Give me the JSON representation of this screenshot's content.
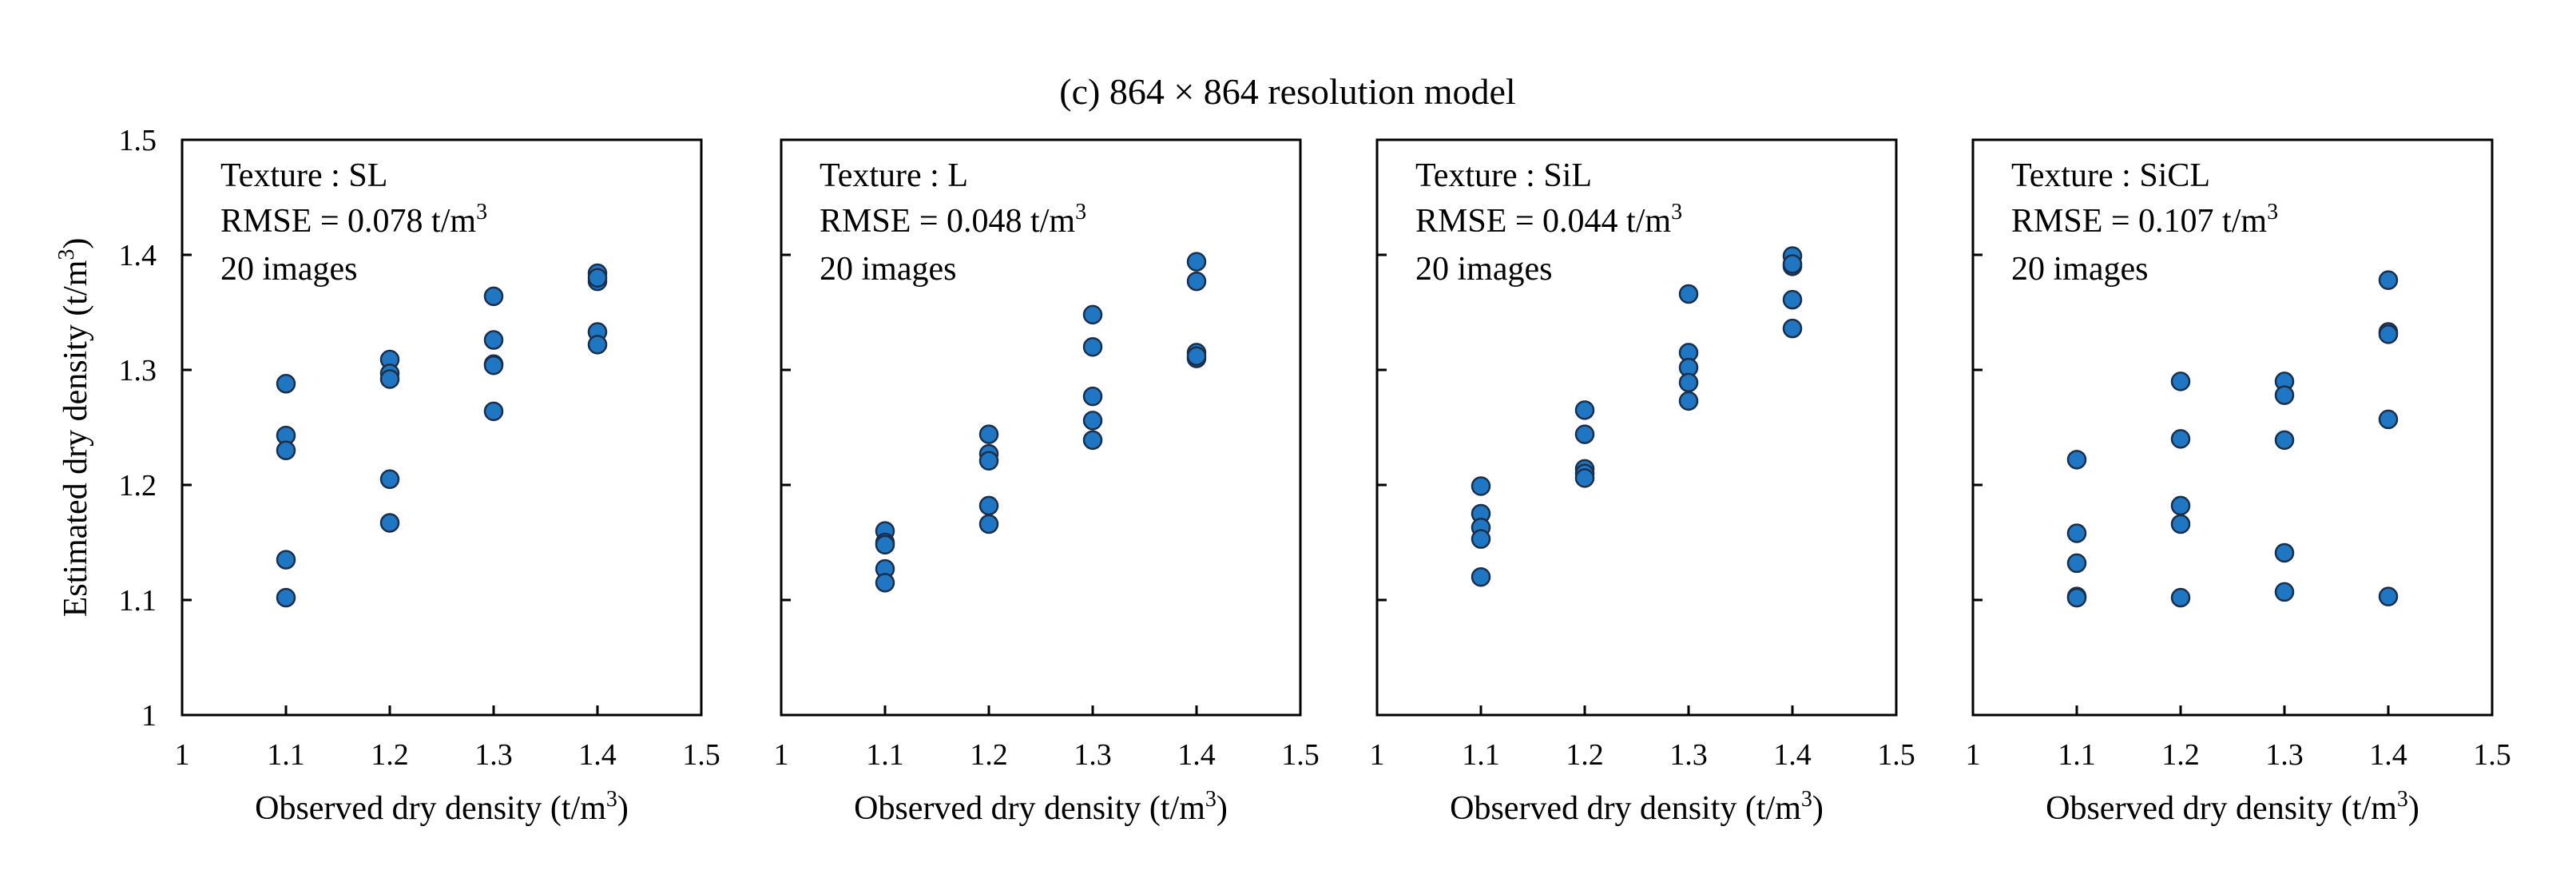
{
  "title": "(c) 864 × 864 resolution model",
  "chart_data": [
    {
      "type": "scatter",
      "texture_label": "Texture : SL",
      "rmse_label": "RMSE =  0.078 t/m",
      "rmse_sup": "3",
      "images_label": "20 images",
      "xlabel": "Observed dry density (t/m",
      "xlabel_sup": "3",
      "xlabel_end": ")",
      "ylabel": "Estimated dry density (t/m",
      "ylabel_sup": "3",
      "ylabel_end": ")",
      "xlim": [
        1,
        1.5
      ],
      "ylim": [
        1,
        1.5
      ],
      "x_ticks": [
        "1",
        "1.1",
        "1.2",
        "1.3",
        "1.4",
        "1.5"
      ],
      "y_ticks": [
        "1",
        "1.1",
        "1.2",
        "1.3",
        "1.4",
        "1.5"
      ],
      "points": [
        [
          1.1,
          1.288
        ],
        [
          1.1,
          1.243
        ],
        [
          1.1,
          1.23
        ],
        [
          1.1,
          1.135
        ],
        [
          1.1,
          1.102
        ],
        [
          1.2,
          1.309
        ],
        [
          1.2,
          1.297
        ],
        [
          1.2,
          1.292
        ],
        [
          1.2,
          1.205
        ],
        [
          1.2,
          1.167
        ],
        [
          1.3,
          1.364
        ],
        [
          1.3,
          1.326
        ],
        [
          1.3,
          1.305
        ],
        [
          1.3,
          1.304
        ],
        [
          1.3,
          1.264
        ],
        [
          1.4,
          1.384
        ],
        [
          1.4,
          1.377
        ],
        [
          1.4,
          1.333
        ],
        [
          1.4,
          1.322
        ],
        [
          1.4,
          1.38
        ]
      ]
    },
    {
      "type": "scatter",
      "texture_label": "Texture : L",
      "rmse_label": "RMSE =  0.048 t/m",
      "rmse_sup": "3",
      "images_label": "20 images",
      "xlabel": "Observed dry density (t/m",
      "xlabel_sup": "3",
      "xlabel_end": ")",
      "xlim": [
        1,
        1.5
      ],
      "ylim": [
        1,
        1.5
      ],
      "x_ticks": [
        "1",
        "1.1",
        "1.2",
        "1.3",
        "1.4",
        "1.5"
      ],
      "points": [
        [
          1.1,
          1.16
        ],
        [
          1.1,
          1.15
        ],
        [
          1.1,
          1.148
        ],
        [
          1.1,
          1.127
        ],
        [
          1.1,
          1.115
        ],
        [
          1.2,
          1.244
        ],
        [
          1.2,
          1.227
        ],
        [
          1.2,
          1.221
        ],
        [
          1.2,
          1.182
        ],
        [
          1.2,
          1.166
        ],
        [
          1.3,
          1.348
        ],
        [
          1.3,
          1.32
        ],
        [
          1.3,
          1.277
        ],
        [
          1.3,
          1.256
        ],
        [
          1.3,
          1.239
        ],
        [
          1.4,
          1.394
        ],
        [
          1.4,
          1.377
        ],
        [
          1.4,
          1.315
        ],
        [
          1.4,
          1.31
        ],
        [
          1.4,
          1.312
        ]
      ]
    },
    {
      "type": "scatter",
      "texture_label": "Texture : SiL",
      "rmse_label": "RMSE =  0.044 t/m",
      "rmse_sup": "3",
      "images_label": "20 images",
      "xlabel": "Observed dry density (t/m",
      "xlabel_sup": "3",
      "xlabel_end": ")",
      "xlim": [
        1,
        1.5
      ],
      "ylim": [
        1,
        1.5
      ],
      "x_ticks": [
        "1",
        "1.1",
        "1.2",
        "1.3",
        "1.4",
        "1.5"
      ],
      "points": [
        [
          1.1,
          1.199
        ],
        [
          1.1,
          1.175
        ],
        [
          1.1,
          1.163
        ],
        [
          1.1,
          1.153
        ],
        [
          1.1,
          1.12
        ],
        [
          1.2,
          1.265
        ],
        [
          1.2,
          1.244
        ],
        [
          1.2,
          1.214
        ],
        [
          1.2,
          1.21
        ],
        [
          1.2,
          1.206
        ],
        [
          1.3,
          1.366
        ],
        [
          1.3,
          1.315
        ],
        [
          1.3,
          1.302
        ],
        [
          1.3,
          1.289
        ],
        [
          1.3,
          1.273
        ],
        [
          1.4,
          1.399
        ],
        [
          1.4,
          1.39
        ],
        [
          1.4,
          1.361
        ],
        [
          1.4,
          1.336
        ],
        [
          1.4,
          1.392
        ]
      ]
    },
    {
      "type": "scatter",
      "texture_label": "Texture : SiCL",
      "rmse_label": "RMSE =  0.107 t/m",
      "rmse_sup": "3",
      "images_label": "20 images",
      "xlabel": "Observed dry density (t/m",
      "xlabel_sup": "3",
      "xlabel_end": ")",
      "xlim": [
        1,
        1.5
      ],
      "ylim": [
        1,
        1.5
      ],
      "x_ticks": [
        "1",
        "1.1",
        "1.2",
        "1.3",
        "1.4",
        "1.5"
      ],
      "points": [
        [
          1.1,
          1.222
        ],
        [
          1.1,
          1.158
        ],
        [
          1.1,
          1.132
        ],
        [
          1.1,
          1.103
        ],
        [
          1.1,
          1.102
        ],
        [
          1.2,
          1.29
        ],
        [
          1.2,
          1.24
        ],
        [
          1.2,
          1.182
        ],
        [
          1.2,
          1.166
        ],
        [
          1.2,
          1.102
        ],
        [
          1.3,
          1.29
        ],
        [
          1.3,
          1.278
        ],
        [
          1.3,
          1.239
        ],
        [
          1.3,
          1.141
        ],
        [
          1.3,
          1.107
        ],
        [
          1.4,
          1.378
        ],
        [
          1.4,
          1.333
        ],
        [
          1.4,
          1.331
        ],
        [
          1.4,
          1.257
        ],
        [
          1.4,
          1.103
        ]
      ]
    }
  ]
}
